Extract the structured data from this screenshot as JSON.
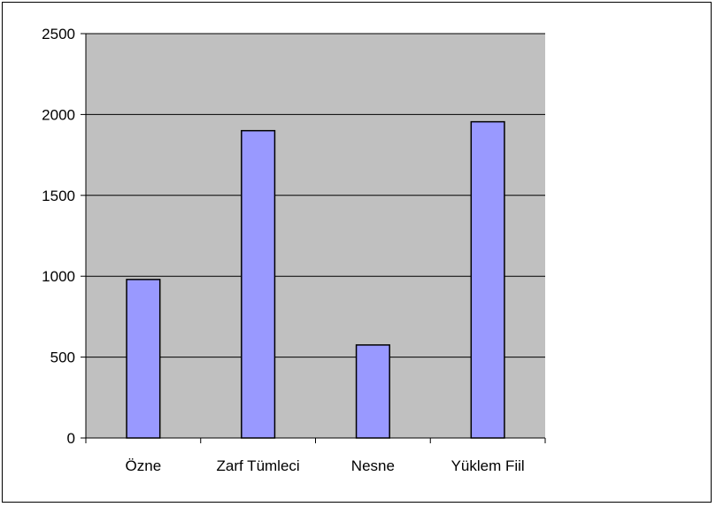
{
  "chart_data": {
    "type": "bar",
    "title": "",
    "xlabel": "",
    "ylabel": "",
    "categories": [
      "Özne",
      "Zarf Tümleci",
      "Nesne",
      "Yüklem Fiil"
    ],
    "values": [
      980,
      1900,
      575,
      1955
    ],
    "ylim": [
      0,
      2500
    ],
    "yticks": [
      0,
      500,
      1000,
      1500,
      2000,
      2500
    ],
    "ytick_labels": [
      "0",
      "500",
      "1000",
      "1500",
      "2000",
      "2500"
    ],
    "grid": true,
    "legend": "none",
    "colors": {
      "plot_background": "#c0c0c0",
      "bar_fill": "#9999ff",
      "bar_stroke": "#000000",
      "gridline": "#000000"
    }
  }
}
